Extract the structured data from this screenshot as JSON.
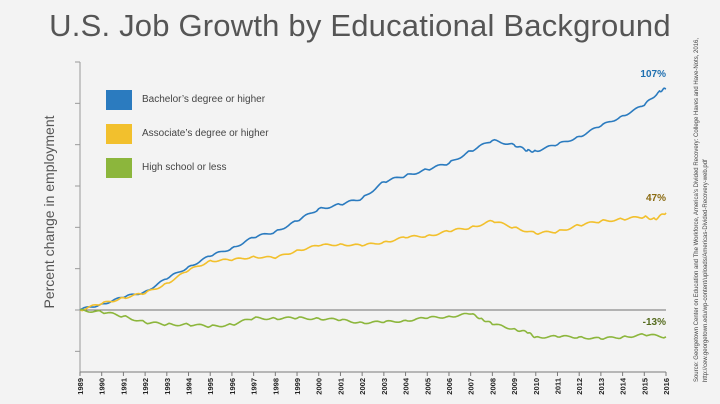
{
  "slide": {
    "title": "U.S. Job Growth by Educational Background",
    "source_line1": "Source: Georgetown Center on Education and The Workforce, America's Divided Recovery: College Haves and Have-Nots, 2016,",
    "source_line2": "http://cew.georgetown.edu/wp-content/uploads/Americas-Divided-Recovery-web.pdf"
  },
  "chart_data": {
    "type": "line",
    "title": "U.S. Job Growth by Educational Background",
    "xlabel": "",
    "ylabel": "Percent change in employment",
    "xlim": [
      1989,
      2016
    ],
    "ylim": [
      -30,
      120
    ],
    "grid": false,
    "legend_placement": "top-left",
    "categories": [
      "1989",
      "1990",
      "1991",
      "1992",
      "1993",
      "1994",
      "1995",
      "1996",
      "1997",
      "1998",
      "1999",
      "2000",
      "2001",
      "2002",
      "2003",
      "2004",
      "2005",
      "2006",
      "2007",
      "2008",
      "2009",
      "2010",
      "2011",
      "2012",
      "2013",
      "2014",
      "2015",
      "2016"
    ],
    "series": [
      {
        "name": "Bachelor’s degree or higher",
        "color": "#2b7bbf",
        "end_label": "107%",
        "points": [
          [
            1989,
            0
          ],
          [
            1990,
            3
          ],
          [
            1991,
            6
          ],
          [
            1992,
            9
          ],
          [
            1993,
            15
          ],
          [
            1994,
            21
          ],
          [
            1995,
            26
          ],
          [
            1996,
            30
          ],
          [
            1997,
            35
          ],
          [
            1998,
            38
          ],
          [
            1999,
            43
          ],
          [
            2000,
            49
          ],
          [
            2001,
            51
          ],
          [
            2002,
            54
          ],
          [
            2003,
            62
          ],
          [
            2004,
            65
          ],
          [
            2005,
            68
          ],
          [
            2006,
            71
          ],
          [
            2007,
            77
          ],
          [
            2008,
            82
          ],
          [
            2009,
            80
          ],
          [
            2009.6,
            77
          ],
          [
            2010,
            77
          ],
          [
            2011,
            80
          ],
          [
            2012,
            84
          ],
          [
            2013,
            89
          ],
          [
            2014,
            94
          ],
          [
            2015,
            99
          ],
          [
            2015.7,
            106
          ],
          [
            2016,
            107
          ]
        ]
      },
      {
        "name": "Associate’s degree or higher",
        "color": "#f2c02d",
        "end_label": "47%",
        "points": [
          [
            1989,
            0
          ],
          [
            1990,
            3
          ],
          [
            1991,
            6
          ],
          [
            1992,
            8
          ],
          [
            1993,
            13
          ],
          [
            1994,
            19
          ],
          [
            1995,
            24
          ],
          [
            1996,
            24
          ],
          [
            1997,
            26
          ],
          [
            1998,
            25
          ],
          [
            1999,
            29
          ],
          [
            2000,
            31
          ],
          [
            2001,
            32
          ],
          [
            2002,
            31
          ],
          [
            2003,
            33
          ],
          [
            2004,
            35
          ],
          [
            2005,
            36
          ],
          [
            2006,
            38
          ],
          [
            2007,
            40
          ],
          [
            2008,
            43
          ],
          [
            2009,
            40
          ],
          [
            2010,
            37
          ],
          [
            2011,
            38
          ],
          [
            2012,
            41
          ],
          [
            2013,
            43
          ],
          [
            2014,
            44
          ],
          [
            2015,
            45
          ],
          [
            2015.5,
            44
          ],
          [
            2016,
            47
          ]
        ]
      },
      {
        "name": "High school or less",
        "color": "#8cb63c",
        "end_label": "-13%",
        "points": [
          [
            1989,
            0
          ],
          [
            1990,
            -1
          ],
          [
            1991,
            -3
          ],
          [
            1992,
            -6
          ],
          [
            1993,
            -7
          ],
          [
            1994,
            -7
          ],
          [
            1995,
            -8
          ],
          [
            1996,
            -7
          ],
          [
            1997,
            -4
          ],
          [
            1998,
            -4
          ],
          [
            1999,
            -4
          ],
          [
            2000,
            -4
          ],
          [
            2001,
            -5
          ],
          [
            2002,
            -6
          ],
          [
            2003,
            -6
          ],
          [
            2004,
            -5
          ],
          [
            2005,
            -4
          ],
          [
            2006,
            -3
          ],
          [
            2007,
            -2
          ],
          [
            2007.5,
            -4
          ],
          [
            2008,
            -7
          ],
          [
            2009,
            -9
          ],
          [
            2009.6,
            -11
          ],
          [
            2010,
            -13
          ],
          [
            2011,
            -13
          ],
          [
            2012,
            -13
          ],
          [
            2013,
            -14
          ],
          [
            2014,
            -13
          ],
          [
            2015,
            -12
          ],
          [
            2016,
            -13
          ]
        ]
      }
    ]
  }
}
